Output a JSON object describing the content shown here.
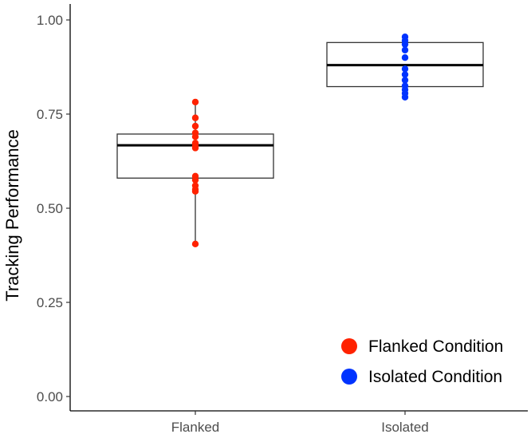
{
  "chart_data": {
    "type": "boxplot_with_points",
    "title": "",
    "xlabel": "",
    "ylabel": "Tracking Performance",
    "categories": [
      "Flanked",
      "Isolated"
    ],
    "ylim": [
      0.0,
      1.0
    ],
    "yticks": [
      0.0,
      0.25,
      0.5,
      0.75,
      1.0
    ],
    "ytick_labels": [
      "0.00",
      "0.25",
      "0.50",
      "0.75",
      "1.00"
    ],
    "grid": false,
    "legend": {
      "placement": "bottom-right",
      "entries": [
        {
          "label": "Flanked Condition",
          "color": "#ff2200"
        },
        {
          "label": "Isolated Condition",
          "color": "#0033ff"
        }
      ]
    },
    "series": [
      {
        "category": "Flanked",
        "color": "#ff2200",
        "box": {
          "min": 0.405,
          "q1": 0.58,
          "median": 0.667,
          "q3": 0.697,
          "max": 0.782
        },
        "points": [
          0.782,
          0.74,
          0.718,
          0.7,
          0.69,
          0.673,
          0.665,
          0.66,
          0.585,
          0.575,
          0.56,
          0.55,
          0.545,
          0.405
        ]
      },
      {
        "category": "Isolated",
        "color": "#0033ff",
        "box": {
          "min": 0.795,
          "q1": 0.823,
          "median": 0.88,
          "q3": 0.94,
          "max": 0.955
        },
        "points": [
          0.955,
          0.945,
          0.935,
          0.92,
          0.9,
          0.87,
          0.855,
          0.84,
          0.825,
          0.815,
          0.805,
          0.795
        ]
      }
    ]
  }
}
